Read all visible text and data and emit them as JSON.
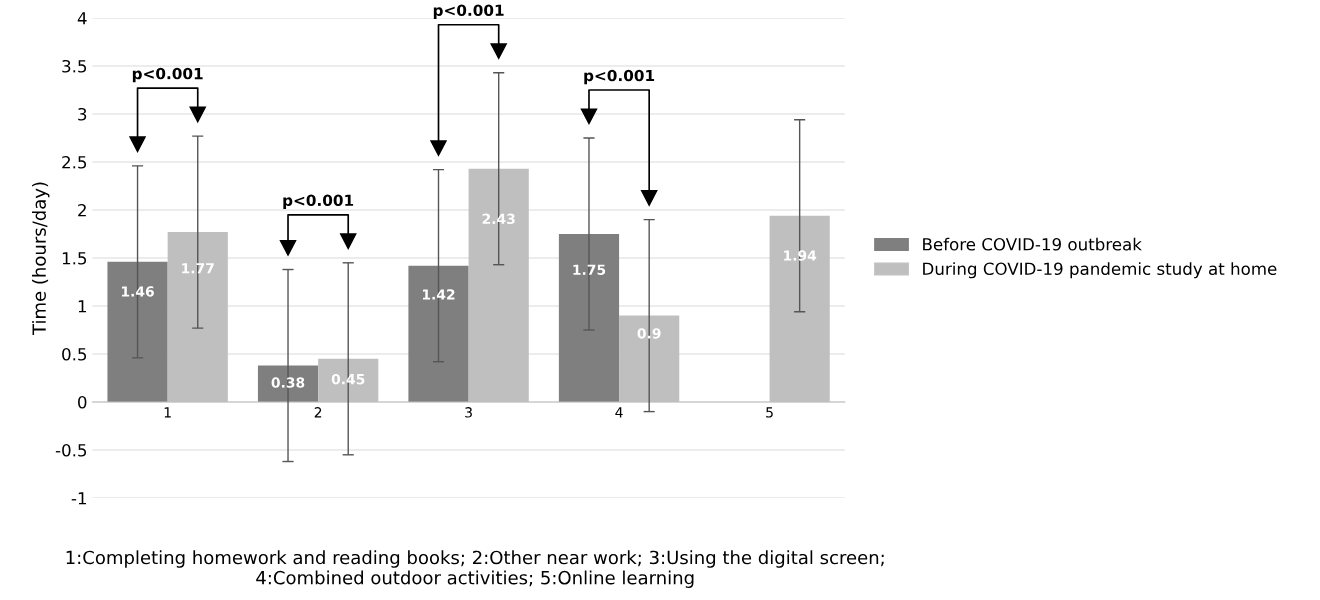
{
  "chart_data": {
    "type": "bar",
    "ylabel": "Time (hours/day)",
    "categories": [
      "1",
      "2",
      "3",
      "4",
      "5"
    ],
    "series": [
      {
        "name": "Before COVID-19 outbreak",
        "color": "#7f7f7f",
        "values": [
          1.46,
          0.38,
          1.42,
          1.75,
          null
        ],
        "errors": [
          1.0,
          1.0,
          1.0,
          1.0,
          null
        ]
      },
      {
        "name": "During COVID-19 pandemic study at home",
        "color": "#bfbfbf",
        "values": [
          1.77,
          0.45,
          2.43,
          0.9,
          1.94
        ],
        "errors": [
          1.0,
          1.0,
          1.0,
          1.0,
          1.0
        ]
      }
    ],
    "data_labels": true,
    "ylim": [
      -1,
      4
    ],
    "yticks": [
      -1,
      -0.5,
      0,
      0.5,
      1,
      1.5,
      2,
      2.5,
      3,
      3.5,
      4
    ],
    "grid": "y",
    "legend": "right",
    "annotations": [
      "p<0.001",
      "p<0.001",
      "p<0.001",
      "p<0.001",
      "1:Completing homework and reading books; 2:Other near work; 3:Using the digital screen;\n4:Combined outdoor activities; 5:Online learning"
    ]
  }
}
